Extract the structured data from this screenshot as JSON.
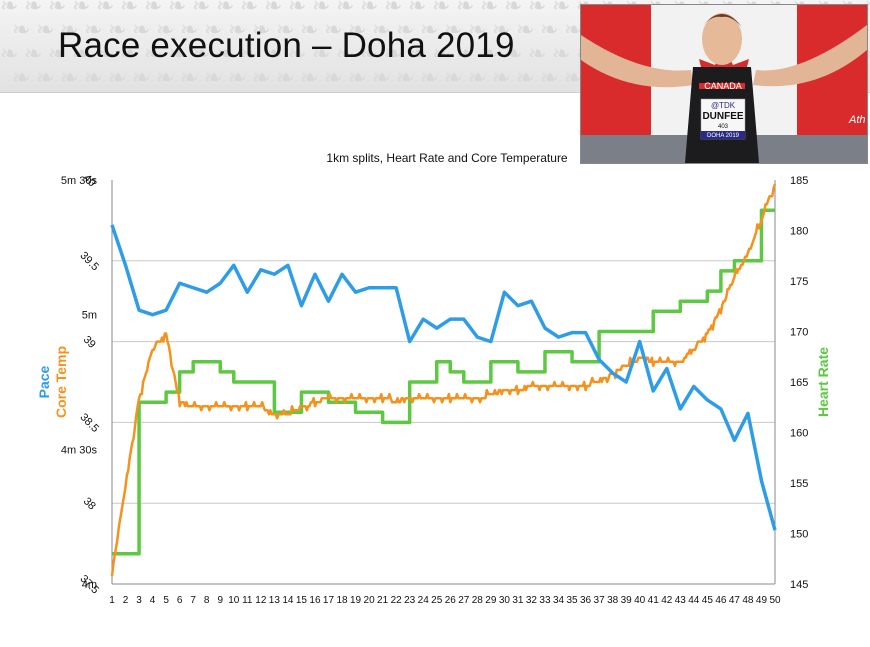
{
  "slide": {
    "title": "Race execution – Doha 2019"
  },
  "photo": {
    "flag_text": "",
    "bib_lines": [
      "CANADA",
      "@TDK",
      "DUNFEE",
      "403",
      "DOHA 2019"
    ],
    "sign_text": "Ath"
  },
  "colors": {
    "pace": "#2f9de6",
    "temp": "#f5921e",
    "hr": "#5dc842",
    "grid": "#c9c9c9",
    "axis": "#8a8a8a"
  },
  "chart_data": {
    "type": "line",
    "title": "1km splits, Heart Rate and Core Temperature",
    "xlabel": "",
    "x": [
      1,
      2,
      3,
      4,
      5,
      6,
      7,
      8,
      9,
      10,
      11,
      12,
      13,
      14,
      15,
      16,
      17,
      18,
      19,
      20,
      21,
      22,
      23,
      24,
      25,
      26,
      27,
      28,
      29,
      30,
      31,
      32,
      33,
      34,
      35,
      36,
      37,
      38,
      39,
      40,
      41,
      42,
      43,
      44,
      45,
      46,
      47,
      48,
      49,
      50
    ],
    "x_tick_labels": [
      "1",
      "2",
      "3",
      "4",
      "5",
      "6",
      "7",
      "8",
      "9",
      "10",
      "11",
      "12",
      "13",
      "14",
      "15",
      "16",
      "17",
      "18",
      "19",
      "20",
      "21",
      "22",
      "23",
      "24",
      "25",
      "26",
      "27",
      "28",
      "29",
      "30",
      "31",
      "32",
      "33",
      "34",
      "35",
      "36",
      "37",
      "38",
      "39",
      "40",
      "41",
      "42",
      "43",
      "44",
      "45",
      "46",
      "47",
      "48",
      "49",
      "50"
    ],
    "left_axis_pace": {
      "label": "Pace",
      "ticks": [
        "5m 30s",
        "5m",
        "4m 30s",
        "4m"
      ],
      "range_seconds": [
        240,
        330
      ]
    },
    "left_axis_temp": {
      "label": "Core Temp",
      "ticks": [
        "40",
        "39.5",
        "39",
        "38.5",
        "38",
        "37.5"
      ],
      "range": [
        37.5,
        40
      ]
    },
    "right_axis_hr": {
      "label": "Heart Rate",
      "ticks": [
        "185",
        "180",
        "175",
        "170",
        "165",
        "160",
        "155",
        "150",
        "145"
      ],
      "range": [
        145,
        185
      ]
    },
    "series": [
      {
        "name": "Pace",
        "axis": "left_pace",
        "unit": "seconds per km",
        "values": [
          320,
          311,
          301,
          300,
          301,
          307,
          306,
          305,
          307,
          311,
          305,
          310,
          309,
          311,
          302,
          309,
          303,
          309,
          305,
          306,
          306,
          306,
          294,
          299,
          297,
          299,
          299,
          295,
          294,
          305,
          302,
          303,
          297,
          295,
          296,
          296,
          290,
          287,
          285,
          294,
          283,
          288,
          279,
          284,
          281,
          279,
          272,
          278,
          263,
          252
        ]
      },
      {
        "name": "Core Temp",
        "axis": "left_temp",
        "unit": "°C",
        "values": [
          37.57,
          38.1,
          38.65,
          38.95,
          39.05,
          38.62,
          38.6,
          38.6,
          38.6,
          38.6,
          38.6,
          38.6,
          38.55,
          38.55,
          38.6,
          38.62,
          38.65,
          38.65,
          38.65,
          38.65,
          38.65,
          38.63,
          38.65,
          38.65,
          38.65,
          38.65,
          38.65,
          38.65,
          38.67,
          38.7,
          38.7,
          38.72,
          38.72,
          38.72,
          38.72,
          38.73,
          38.75,
          38.8,
          38.85,
          38.9,
          38.88,
          38.87,
          38.88,
          38.95,
          39.05,
          39.2,
          39.4,
          39.55,
          39.75,
          39.98
        ]
      },
      {
        "name": "Heart Rate",
        "axis": "right",
        "unit": "bpm",
        "values": [
          148,
          148,
          163,
          163,
          164,
          166,
          167,
          167,
          166,
          165,
          165,
          165,
          162,
          162,
          164,
          164,
          163,
          163,
          162,
          162,
          161,
          161,
          165,
          165,
          167,
          166,
          165,
          165,
          167,
          167,
          166,
          166,
          168,
          168,
          167,
          167,
          170,
          170,
          170,
          170,
          172,
          172,
          173,
          173,
          174,
          176,
          177,
          177,
          182,
          182
        ]
      }
    ]
  }
}
